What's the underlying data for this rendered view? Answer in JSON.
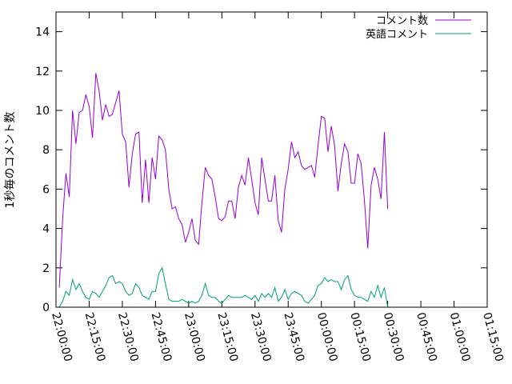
{
  "chart_data": {
    "type": "line",
    "title": "",
    "xlabel": "",
    "ylabel": "1秒毎のコメント数",
    "xlim_minutes": [
      0,
      195
    ],
    "ylim": [
      0,
      15
    ],
    "y_ticks": [
      0,
      2,
      4,
      6,
      8,
      10,
      12,
      14
    ],
    "x_ticks": [
      {
        "value": 0,
        "label": "22:00:00"
      },
      {
        "value": 15,
        "label": "22:15:00"
      },
      {
        "value": 30,
        "label": "22:30:00"
      },
      {
        "value": 45,
        "label": "22:45:00"
      },
      {
        "value": 60,
        "label": "23:00:00"
      },
      {
        "value": 75,
        "label": "23:15:00"
      },
      {
        "value": 90,
        "label": "23:30:00"
      },
      {
        "value": 105,
        "label": "23:45:00"
      },
      {
        "value": 120,
        "label": "00:00:00"
      },
      {
        "value": 135,
        "label": "00:15:00"
      },
      {
        "value": 150,
        "label": "00:30:00"
      },
      {
        "value": 165,
        "label": "00:45:00"
      },
      {
        "value": 180,
        "label": "01:00:00"
      },
      {
        "value": 195,
        "label": "01:15:00"
      }
    ],
    "x_minutes_step": 1.5,
    "x_minutes_start": 1.5,
    "legend_position": "top-right",
    "grid": false,
    "series": [
      {
        "name": "コメント数",
        "color": "#9400d3",
        "values": [
          1.0,
          4.5,
          6.8,
          5.6,
          10.0,
          8.3,
          9.9,
          10.0,
          10.8,
          10.2,
          8.6,
          11.9,
          11.0,
          9.5,
          10.3,
          9.7,
          9.8,
          10.4,
          11.0,
          8.8,
          8.4,
          6.1,
          7.8,
          8.8,
          8.9,
          5.3,
          7.5,
          5.3,
          7.6,
          6.5,
          8.7,
          8.5,
          8.0,
          6.0,
          5.0,
          5.1,
          4.5,
          4.2,
          3.3,
          3.8,
          4.5,
          3.4,
          3.2,
          5.3,
          7.1,
          6.7,
          6.5,
          5.6,
          4.5,
          4.4,
          4.6,
          5.4,
          5.4,
          4.5,
          6.1,
          6.7,
          6.2,
          7.6,
          6.5,
          5.3,
          4.7,
          7.6,
          6.5,
          5.4,
          5.4,
          6.7,
          4.4,
          3.8,
          6.0,
          7.0,
          8.4,
          7.6,
          7.9,
          7.2,
          7.0,
          7.1,
          7.2,
          6.6,
          8.2,
          9.7,
          9.6,
          7.9,
          9.2,
          8.2,
          5.9,
          7.3,
          8.3,
          7.9,
          6.3,
          6.3,
          7.8,
          7.3,
          5.4,
          3.0,
          6.2,
          7.1,
          6.5,
          5.5,
          8.9,
          5.0
        ]
      },
      {
        "name": "英語コメント",
        "color": "#009e73",
        "values": [
          0.0,
          0.3,
          0.8,
          0.6,
          1.4,
          0.9,
          1.2,
          0.8,
          0.5,
          0.4,
          0.8,
          0.7,
          0.5,
          0.8,
          1.1,
          1.5,
          1.6,
          1.2,
          1.3,
          1.2,
          0.8,
          0.6,
          0.7,
          1.2,
          1.0,
          0.6,
          0.5,
          0.4,
          0.8,
          0.8,
          1.7,
          2.0,
          1.2,
          0.4,
          0.3,
          0.3,
          0.3,
          0.4,
          0.3,
          0.2,
          0.3,
          0.2,
          0.3,
          0.6,
          1.2,
          0.6,
          0.5,
          0.5,
          0.3,
          0.2,
          0.4,
          0.6,
          0.5,
          0.5,
          0.5,
          0.5,
          0.6,
          0.5,
          0.4,
          0.6,
          0.3,
          0.7,
          0.5,
          0.7,
          0.5,
          1.0,
          0.3,
          0.5,
          0.9,
          0.4,
          0.7,
          0.8,
          0.7,
          0.6,
          0.3,
          0.2,
          0.4,
          0.6,
          1.1,
          1.2,
          1.5,
          1.3,
          1.4,
          1.3,
          1.3,
          0.9,
          1.4,
          1.6,
          0.9,
          0.6,
          0.5,
          0.5,
          0.4,
          0.3,
          0.8,
          0.5,
          1.1,
          0.5,
          1.0,
          0.0
        ]
      }
    ]
  }
}
